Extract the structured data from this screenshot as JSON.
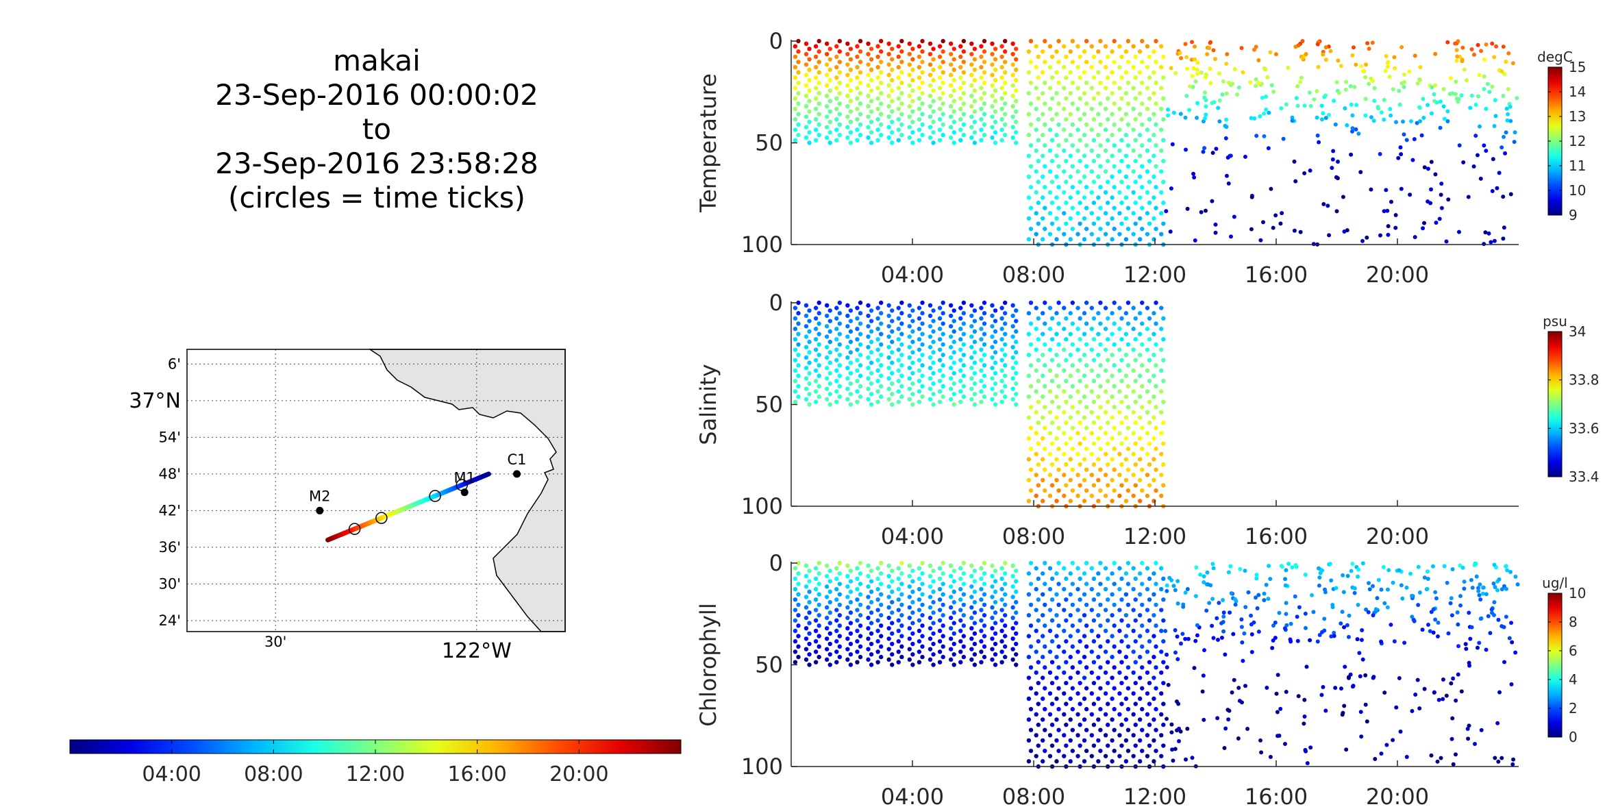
{
  "title": {
    "lines": [
      "makai",
      "23-Sep-2016 00:00:02",
      "to",
      "23-Sep-2016 23:58:28",
      "(circles = time ticks)"
    ]
  },
  "time_colorbar": {
    "tick_labels": [
      "04:00",
      "08:00",
      "12:00",
      "16:00",
      "20:00"
    ]
  },
  "chart_data": [
    {
      "type": "map",
      "lat_tick_labels": [
        "6'",
        "37°N",
        "54'",
        "48'",
        "42'",
        "36'",
        "30'",
        "24'"
      ],
      "lon_tick_labels": [
        "30'",
        "122°W"
      ],
      "grid": true,
      "stations": [
        {
          "name": "M2",
          "lon": -122.39,
          "lat": 36.7
        },
        {
          "name": "M1",
          "lon": -122.03,
          "lat": 36.75
        },
        {
          "name": "C1",
          "lon": -121.9,
          "lat": 36.8
        }
      ],
      "track": {
        "start": {
          "lon": -122.37,
          "lat": 36.62,
          "time": "00:00"
        },
        "end": {
          "lon": -121.97,
          "lat": 36.8,
          "time": "24:00"
        },
        "color_encodes": "time"
      }
    },
    {
      "type": "scatter",
      "ylabel": "Temperature",
      "units": "degC",
      "ylim": [
        100,
        0
      ],
      "y_ticks": [
        0,
        50,
        100
      ],
      "x_ticks": [
        "04:00",
        "08:00",
        "12:00",
        "16:00",
        "20:00"
      ],
      "colorbar": {
        "ticks": [
          9,
          10,
          11,
          12,
          13,
          14,
          15
        ],
        "range": [
          9,
          15
        ]
      },
      "profiles": [
        {
          "time_range": [
            "00:00",
            "07:30"
          ],
          "depth_range": [
            0,
            50
          ],
          "value_surface": 14.8,
          "value_bottom": 11.2
        },
        {
          "time_range": [
            "07:45",
            "12:20"
          ],
          "depth_range": [
            0,
            100
          ],
          "value_surface": 13.5,
          "value_bottom": 10.8
        },
        {
          "time_range": [
            "12:20",
            "24:00"
          ],
          "depth_range": [
            0,
            100
          ],
          "value_surface": 13.8,
          "value_bottom": 9.3,
          "sparse": true
        }
      ]
    },
    {
      "type": "scatter",
      "ylabel": "Salinity",
      "units": "psu",
      "ylim": [
        100,
        0
      ],
      "y_ticks": [
        0,
        50,
        100
      ],
      "x_ticks": [
        "04:00",
        "08:00",
        "12:00",
        "16:00",
        "20:00"
      ],
      "colorbar": {
        "ticks": [
          33.4,
          33.6,
          33.8,
          34
        ],
        "range": [
          33.4,
          34
        ]
      },
      "profiles": [
        {
          "time_range": [
            "00:00",
            "07:30"
          ],
          "depth_range": [
            0,
            50
          ],
          "value_surface": 33.47,
          "value_bottom": 33.67
        },
        {
          "time_range": [
            "07:45",
            "12:20"
          ],
          "depth_range": [
            0,
            100
          ],
          "value_surface": 33.5,
          "value_bottom": 33.85
        }
      ]
    },
    {
      "type": "scatter",
      "ylabel": "Chlorophyll",
      "units": "ug/l",
      "ylim": [
        100,
        0
      ],
      "y_ticks": [
        0,
        50,
        100
      ],
      "x_ticks": [
        "04:00",
        "08:00",
        "12:00",
        "16:00",
        "20:00"
      ],
      "colorbar": {
        "ticks": [
          0,
          2,
          4,
          6,
          8,
          10
        ],
        "range": [
          0,
          10
        ]
      },
      "profiles": [
        {
          "time_range": [
            "00:00",
            "07:30"
          ],
          "depth_range": [
            0,
            50
          ],
          "value_surface": 5.5,
          "value_bottom": 0.3
        },
        {
          "time_range": [
            "07:45",
            "12:20"
          ],
          "depth_range": [
            0,
            100
          ],
          "value_surface": 3.5,
          "value_bottom": 0.3
        },
        {
          "time_range": [
            "12:20",
            "24:00"
          ],
          "depth_range": [
            0,
            100
          ],
          "value_surface": 3.5,
          "value_bottom": 0.3,
          "sparse": true
        }
      ]
    }
  ]
}
